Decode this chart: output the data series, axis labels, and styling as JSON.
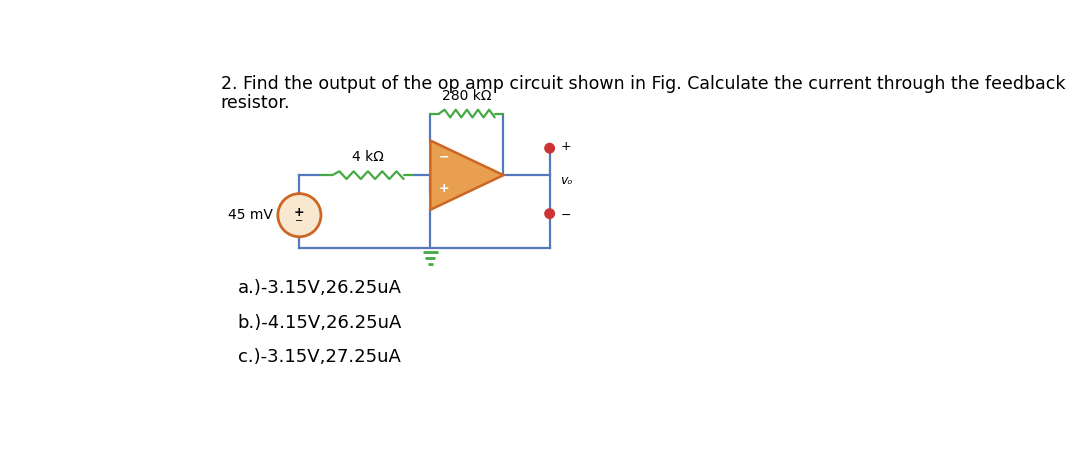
{
  "title_line1": "2. Find the output of the op amp circuit shown in Fig. Calculate the current through the feedback",
  "title_line2": "resistor.",
  "answer_a": "a.)-3.15V,26.25uA",
  "answer_b": "b.)-4.15V,26.25uA",
  "answer_c": "c.)-3.15V,27.25uA",
  "label_280k": "280 kΩ",
  "label_4k": "4 kΩ",
  "label_45mv": "45 mV",
  "label_vo": "vₒ",
  "wire_color": "#5577bb",
  "resistor_color": "#44aa44",
  "opamp_body_color": "#e8a050",
  "opamp_border_color": "#cc6622",
  "source_circle_color": "#cc6622",
  "source_circle_fill": "#f8e8d0",
  "output_dot_color": "#cc3333",
  "output_dot_edge": "#cc3333",
  "ground_color": "#44aa44",
  "bg_color": "#ffffff",
  "title_fontsize": 12.5,
  "answer_fontsize": 13,
  "label_fontsize": 10,
  "wire_lw": 1.6,
  "resistor_lw": 1.6
}
